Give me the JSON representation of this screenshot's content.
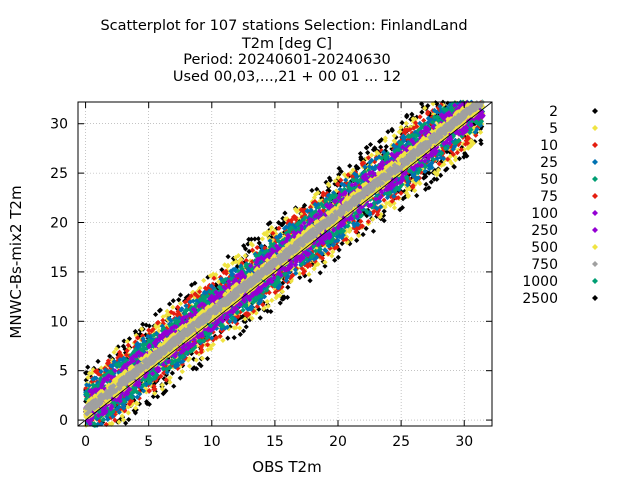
{
  "chart_data": {
    "type": "scatter",
    "title_lines": [
      "Scatterplot for  107 stations Selection: FinlandLand",
      "T2m [deg C]",
      "Period: 20240601-20240630",
      "Used 00,03,...,21 + 00 01 ... 12"
    ],
    "xlabel": "OBS T2m",
    "ylabel": "MNWC-Bs-mix2 T2m",
    "xlim": [
      -0.6,
      32.2
    ],
    "ylim": [
      -0.6,
      32.2
    ],
    "xticks": [
      "0",
      "5",
      "10",
      "15",
      "20",
      "25",
      "30"
    ],
    "yticks": [
      "0",
      "5",
      "10",
      "15",
      "20",
      "25",
      "30"
    ],
    "grid": true,
    "diagonal_line": true,
    "legend_position": "right",
    "legend": [
      {
        "label": "2",
        "color": "#000000"
      },
      {
        "label": "5",
        "color": "#f0e442"
      },
      {
        "label": "10",
        "color": "#e51e10"
      },
      {
        "label": "25",
        "color": "#0072b2"
      },
      {
        "label": "50",
        "color": "#009e73"
      },
      {
        "label": "75",
        "color": "#e51e10"
      },
      {
        "label": "100",
        "color": "#9400d3"
      },
      {
        "label": "250",
        "color": "#9400d3"
      },
      {
        "label": "500",
        "color": "#f0e442"
      },
      {
        "label": "750",
        "color": "#a0a0a0"
      },
      {
        "label": "1000",
        "color": "#009e73"
      },
      {
        "label": "2500",
        "color": "#000000"
      }
    ],
    "density_bands": [
      {
        "color": "#000000",
        "spread": 4.6
      },
      {
        "color": "#f0e442",
        "spread": 3.9
      },
      {
        "color": "#e51e10",
        "spread": 3.3
      },
      {
        "color": "#0072b2",
        "spread": 2.8
      },
      {
        "color": "#009e73",
        "spread": 2.3
      },
      {
        "color": "#9400d3",
        "spread": 1.8
      },
      {
        "color": "#f0e442",
        "spread": 0.9
      },
      {
        "color": "#a0a0a0",
        "spread": 0.45
      }
    ],
    "point_range_x": [
      0,
      31.5
    ]
  }
}
